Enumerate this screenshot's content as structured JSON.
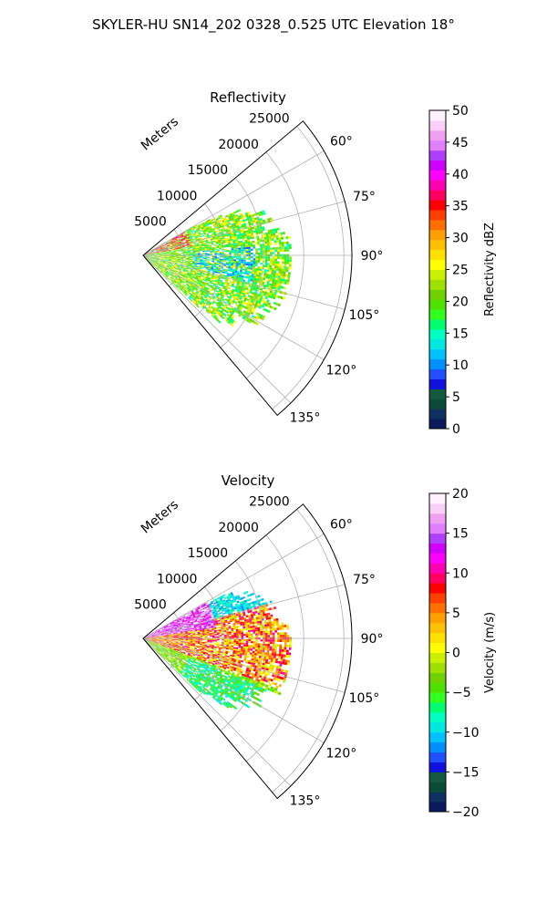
{
  "figure": {
    "suptitle": "SKYLER-HU  SN14_202  0328_0.525 UTC Elevation 18°"
  },
  "chart_data": [
    {
      "type": "heatmap",
      "subtype": "polar-sector-ppi",
      "title": "Reflectivity",
      "radial_label": "Meters",
      "r_ticks": [
        5000,
        10000,
        15000,
        20000,
        25000
      ],
      "r_tick_labels": [
        "5000",
        "10000",
        "15000",
        "20000",
        "25000"
      ],
      "rlim": [
        0,
        27000
      ],
      "theta_ticks": [
        60,
        75,
        90,
        105,
        120,
        135
      ],
      "theta_tick_labels": [
        "60°",
        "75°",
        "90°",
        "105°",
        "120°",
        "135°"
      ],
      "theta_range_deg": [
        50,
        140
      ],
      "grid": true,
      "colorbar": {
        "label": "Reflectivity dBZ",
        "range": [
          0,
          50
        ],
        "ticks": [
          0,
          5,
          10,
          15,
          20,
          25,
          30,
          35,
          40,
          45,
          50
        ],
        "tick_labels": [
          "0",
          "5",
          "10",
          "15",
          "20",
          "25",
          "30",
          "35",
          "40",
          "45",
          "50"
        ],
        "colors": [
          "#0a1a5a",
          "#103060",
          "#0c4a3a",
          "#155a40",
          "#1010e0",
          "#2050ff",
          "#0090ff",
          "#00c0ff",
          "#00e8e0",
          "#00ffc0",
          "#00ff70",
          "#30ff20",
          "#50e000",
          "#70d000",
          "#a0e000",
          "#c8f000",
          "#ffff00",
          "#ffe000",
          "#ffc000",
          "#ffa000",
          "#ff7000",
          "#ff4000",
          "#ff0000",
          "#ff0060",
          "#ff00b0",
          "#ff00ff",
          "#d000ff",
          "#b040ff",
          "#e080ff",
          "#f0a0f0",
          "#f8d0f8",
          "#fff0ff"
        ]
      },
      "field_description": "Echoes extend from the radar outward to roughly 18000 m between about 62 and 133 degrees; values mostly 15-25 dBZ (green/yellow), 30-40 dBZ (red/magenta) near the origin on the upper side, and 8-14 dBZ (cyan) in the interior gaps."
    },
    {
      "type": "heatmap",
      "subtype": "polar-sector-ppi",
      "title": "Velocity",
      "radial_label": "Meters",
      "r_ticks": [
        5000,
        10000,
        15000,
        20000,
        25000
      ],
      "r_tick_labels": [
        "5000",
        "10000",
        "15000",
        "20000",
        "25000"
      ],
      "rlim": [
        0,
        27000
      ],
      "theta_ticks": [
        60,
        75,
        90,
        105,
        120,
        135
      ],
      "theta_tick_labels": [
        "60°",
        "75°",
        "90°",
        "105°",
        "120°",
        "135°"
      ],
      "theta_range_deg": [
        50,
        140
      ],
      "grid": true,
      "colorbar": {
        "label": "Velocity (m/s)",
        "range": [
          -20,
          20
        ],
        "ticks": [
          -20,
          -15,
          -10,
          -5,
          0,
          5,
          10,
          15,
          20
        ],
        "tick_labels": [
          "−20",
          "−15",
          "−10",
          "−5",
          "0",
          "5",
          "10",
          "15",
          "20"
        ],
        "colors": [
          "#0a1a5a",
          "#103060",
          "#0c4a3a",
          "#155a40",
          "#1010e0",
          "#2050ff",
          "#0090ff",
          "#00c0ff",
          "#00e8e0",
          "#00ffc0",
          "#00ff70",
          "#30ff20",
          "#50e000",
          "#70d000",
          "#a0e000",
          "#c8f000",
          "#ffff00",
          "#ffe000",
          "#ffc000",
          "#ffa000",
          "#ff7000",
          "#ff4000",
          "#ff0000",
          "#ff0060",
          "#ff00b0",
          "#ff00ff",
          "#d000ff",
          "#b040ff",
          "#e080ff",
          "#f0a0f0",
          "#f8d0f8",
          "#fff0ff"
        ]
      },
      "field_description": "Outbound velocities +10 to +18 m/s (magenta/purple) in the upper-left near the radar, -8 to -12 m/s (green/cyan) along the upper and lower outer edges, and 0 to +10 m/s (yellow/orange/red) in the center."
    }
  ]
}
